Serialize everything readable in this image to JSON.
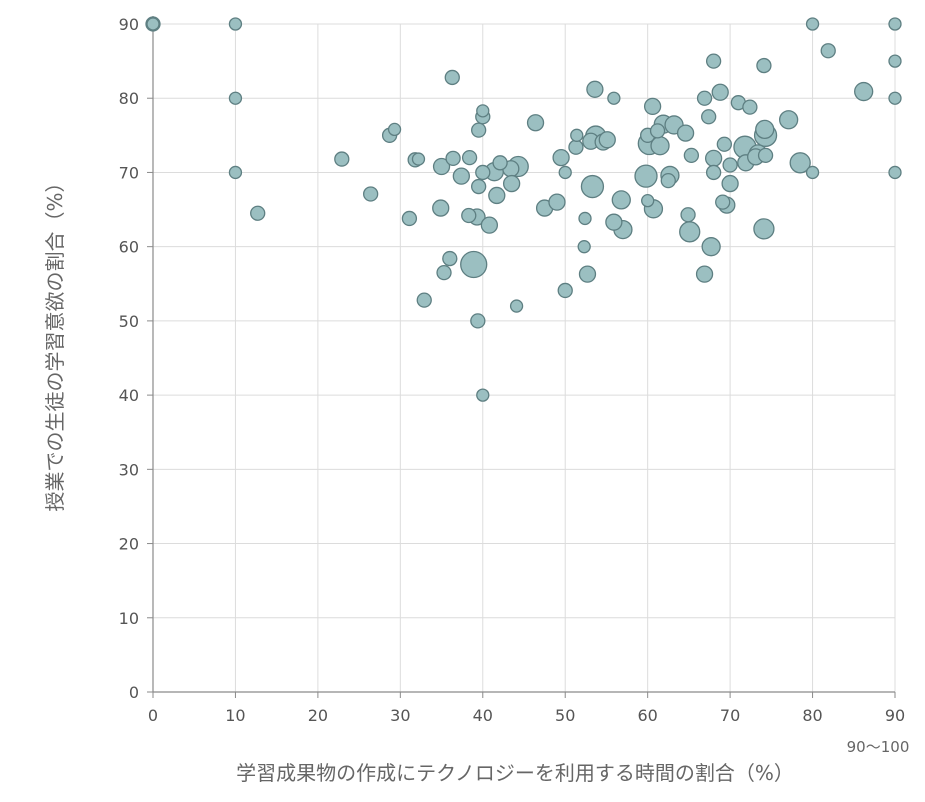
{
  "chart_data": {
    "type": "scatter",
    "title": "",
    "xlabel": "学習成果物の作成にテクノロジーを利用する時間の割合（%）",
    "ylabel": "授業での生徒の学習意欲の割合（%）",
    "x_note": "90～100",
    "xlim": [
      0,
      90
    ],
    "ylim": [
      0,
      90
    ],
    "x_ticks": [
      0,
      10,
      20,
      30,
      40,
      50,
      60,
      70,
      80,
      90
    ],
    "y_ticks": [
      0,
      10,
      20,
      30,
      40,
      50,
      60,
      70,
      80,
      90
    ],
    "grid": true,
    "bubble_fill": "#9bbfc1",
    "bubble_stroke": "#5e7f82",
    "points": [
      {
        "x": 0,
        "y": 90,
        "r": 7
      },
      {
        "x": 0,
        "y": 90,
        "r": 6
      },
      {
        "x": 10,
        "y": 90,
        "r": 6
      },
      {
        "x": 10,
        "y": 80,
        "r": 6
      },
      {
        "x": 10,
        "y": 70,
        "r": 6
      },
      {
        "x": 12.7,
        "y": 64.5,
        "r": 7
      },
      {
        "x": 22.9,
        "y": 71.8,
        "r": 7
      },
      {
        "x": 26.4,
        "y": 67.1,
        "r": 7
      },
      {
        "x": 28.7,
        "y": 75.0,
        "r": 7
      },
      {
        "x": 29.3,
        "y": 75.8,
        "r": 6
      },
      {
        "x": 31.1,
        "y": 63.8,
        "r": 7
      },
      {
        "x": 31.8,
        "y": 71.7,
        "r": 7
      },
      {
        "x": 32.2,
        "y": 71.8,
        "r": 6
      },
      {
        "x": 32.9,
        "y": 52.8,
        "r": 7
      },
      {
        "x": 34.9,
        "y": 65.2,
        "r": 8
      },
      {
        "x": 35.0,
        "y": 70.8,
        "r": 8
      },
      {
        "x": 35.3,
        "y": 56.5,
        "r": 7
      },
      {
        "x": 36.0,
        "y": 58.4,
        "r": 7
      },
      {
        "x": 36.3,
        "y": 82.8,
        "r": 7
      },
      {
        "x": 36.4,
        "y": 71.9,
        "r": 7
      },
      {
        "x": 37.4,
        "y": 69.5,
        "r": 8
      },
      {
        "x": 38.3,
        "y": 64.2,
        "r": 7
      },
      {
        "x": 38.4,
        "y": 72.0,
        "r": 7
      },
      {
        "x": 38.9,
        "y": 57.6,
        "r": 13
      },
      {
        "x": 39.3,
        "y": 64.0,
        "r": 8
      },
      {
        "x": 39.5,
        "y": 75.7,
        "r": 7
      },
      {
        "x": 39.5,
        "y": 68.1,
        "r": 7
      },
      {
        "x": 39.4,
        "y": 50.0,
        "r": 7
      },
      {
        "x": 40.0,
        "y": 78.3,
        "r": 6
      },
      {
        "x": 40.0,
        "y": 77.5,
        "r": 7
      },
      {
        "x": 40.0,
        "y": 70.0,
        "r": 7
      },
      {
        "x": 40.0,
        "y": 40.0,
        "r": 6
      },
      {
        "x": 40.8,
        "y": 62.9,
        "r": 8
      },
      {
        "x": 41.4,
        "y": 70.1,
        "r": 9
      },
      {
        "x": 41.7,
        "y": 66.9,
        "r": 8
      },
      {
        "x": 42.1,
        "y": 71.3,
        "r": 7
      },
      {
        "x": 43.4,
        "y": 70.5,
        "r": 8
      },
      {
        "x": 43.5,
        "y": 68.5,
        "r": 8
      },
      {
        "x": 44.1,
        "y": 52.0,
        "r": 6
      },
      {
        "x": 44.3,
        "y": 70.8,
        "r": 10
      },
      {
        "x": 46.4,
        "y": 76.7,
        "r": 8
      },
      {
        "x": 47.5,
        "y": 65.2,
        "r": 8
      },
      {
        "x": 49.0,
        "y": 66.0,
        "r": 8
      },
      {
        "x": 49.5,
        "y": 72.0,
        "r": 8
      },
      {
        "x": 50.0,
        "y": 70.0,
        "r": 6
      },
      {
        "x": 50.0,
        "y": 54.1,
        "r": 7
      },
      {
        "x": 51.3,
        "y": 73.4,
        "r": 7
      },
      {
        "x": 51.4,
        "y": 75.0,
        "r": 6
      },
      {
        "x": 52.3,
        "y": 60.0,
        "r": 6
      },
      {
        "x": 52.4,
        "y": 63.8,
        "r": 6
      },
      {
        "x": 52.7,
        "y": 56.3,
        "r": 8
      },
      {
        "x": 53.1,
        "y": 74.2,
        "r": 8
      },
      {
        "x": 53.3,
        "y": 68.1,
        "r": 11
      },
      {
        "x": 53.6,
        "y": 81.2,
        "r": 8
      },
      {
        "x": 53.7,
        "y": 74.9,
        "r": 10
      },
      {
        "x": 54.6,
        "y": 74.1,
        "r": 8
      },
      {
        "x": 55.1,
        "y": 74.4,
        "r": 8
      },
      {
        "x": 55.9,
        "y": 63.3,
        "r": 8
      },
      {
        "x": 55.9,
        "y": 80.0,
        "r": 6
      },
      {
        "x": 56.8,
        "y": 66.3,
        "r": 9
      },
      {
        "x": 57.0,
        "y": 62.3,
        "r": 9
      },
      {
        "x": 59.8,
        "y": 69.5,
        "r": 11
      },
      {
        "x": 60.0,
        "y": 75.0,
        "r": 7
      },
      {
        "x": 60.0,
        "y": 66.2,
        "r": 6
      },
      {
        "x": 60.2,
        "y": 73.9,
        "r": 11
      },
      {
        "x": 60.6,
        "y": 78.9,
        "r": 8
      },
      {
        "x": 60.7,
        "y": 65.1,
        "r": 9
      },
      {
        "x": 61.2,
        "y": 75.6,
        "r": 7
      },
      {
        "x": 61.5,
        "y": 73.6,
        "r": 9
      },
      {
        "x": 61.9,
        "y": 76.5,
        "r": 9
      },
      {
        "x": 62.5,
        "y": 68.9,
        "r": 7
      },
      {
        "x": 62.7,
        "y": 69.6,
        "r": 9
      },
      {
        "x": 63.2,
        "y": 76.4,
        "r": 9
      },
      {
        "x": 64.6,
        "y": 75.3,
        "r": 8
      },
      {
        "x": 64.9,
        "y": 64.3,
        "r": 7
      },
      {
        "x": 65.1,
        "y": 62.0,
        "r": 10
      },
      {
        "x": 65.3,
        "y": 72.3,
        "r": 7
      },
      {
        "x": 66.9,
        "y": 56.3,
        "r": 8
      },
      {
        "x": 66.9,
        "y": 80.0,
        "r": 7
      },
      {
        "x": 67.4,
        "y": 77.5,
        "r": 7
      },
      {
        "x": 67.7,
        "y": 60.0,
        "r": 9
      },
      {
        "x": 68.0,
        "y": 85.0,
        "r": 7
      },
      {
        "x": 68.0,
        "y": 71.9,
        "r": 8
      },
      {
        "x": 68.0,
        "y": 70.0,
        "r": 7
      },
      {
        "x": 68.8,
        "y": 80.8,
        "r": 8
      },
      {
        "x": 69.1,
        "y": 66.0,
        "r": 7
      },
      {
        "x": 69.3,
        "y": 73.8,
        "r": 7
      },
      {
        "x": 69.6,
        "y": 65.6,
        "r": 8
      },
      {
        "x": 70.0,
        "y": 68.5,
        "r": 8
      },
      {
        "x": 70.0,
        "y": 71.0,
        "r": 7
      },
      {
        "x": 71.0,
        "y": 79.4,
        "r": 7
      },
      {
        "x": 71.8,
        "y": 73.4,
        "r": 11
      },
      {
        "x": 71.9,
        "y": 71.3,
        "r": 8
      },
      {
        "x": 72.4,
        "y": 78.8,
        "r": 7
      },
      {
        "x": 73.1,
        "y": 72.1,
        "r": 8
      },
      {
        "x": 73.4,
        "y": 72.5,
        "r": 9
      },
      {
        "x": 74.1,
        "y": 84.4,
        "r": 7
      },
      {
        "x": 74.1,
        "y": 62.4,
        "r": 10
      },
      {
        "x": 74.2,
        "y": 75.8,
        "r": 9
      },
      {
        "x": 74.3,
        "y": 72.3,
        "r": 7
      },
      {
        "x": 74.3,
        "y": 75.0,
        "r": 11
      },
      {
        "x": 77.1,
        "y": 77.1,
        "r": 9
      },
      {
        "x": 78.5,
        "y": 71.3,
        "r": 10
      },
      {
        "x": 80.0,
        "y": 90.0,
        "r": 6
      },
      {
        "x": 80.0,
        "y": 70.0,
        "r": 6
      },
      {
        "x": 81.9,
        "y": 86.4,
        "r": 7
      },
      {
        "x": 86.2,
        "y": 80.9,
        "r": 9
      },
      {
        "x": 90.0,
        "y": 90.0,
        "r": 6
      },
      {
        "x": 90.0,
        "y": 85.0,
        "r": 6
      },
      {
        "x": 90.0,
        "y": 80.0,
        "r": 6
      },
      {
        "x": 90.0,
        "y": 70.0,
        "r": 6
      }
    ]
  }
}
